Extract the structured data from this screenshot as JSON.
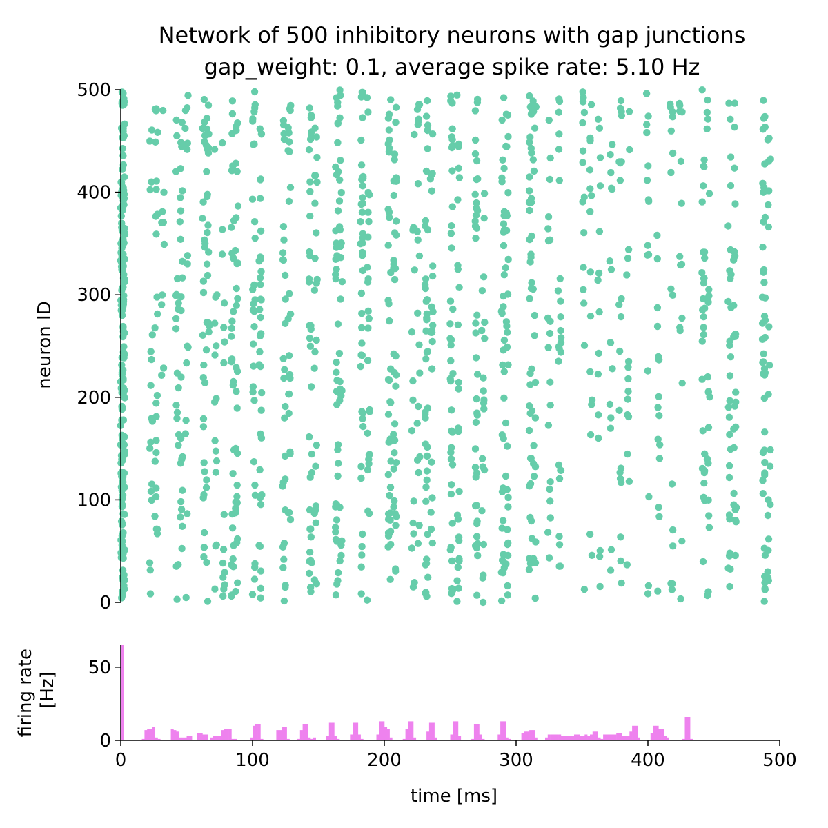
{
  "chart_data": [
    {
      "type": "scatter",
      "title": "Network of 500 inhibitory neurons with gap junctions",
      "subtitle": "gap_weight: 0.1, average spike rate: 5.10 Hz",
      "xlabel": "",
      "ylabel": "neuron ID",
      "xlim": [
        0,
        500
      ],
      "ylim": [
        0,
        500
      ],
      "yticks": [
        0,
        100,
        200,
        300,
        400,
        500
      ],
      "color": "#66cdaa",
      "grid": false,
      "spike_columns": [
        [
          1,
          0.2
        ],
        [
          2,
          0.18
        ],
        [
          23,
          0.035
        ],
        [
          27,
          0.05
        ],
        [
          32,
          0.02
        ],
        [
          43,
          0.04
        ],
        [
          46,
          0.05
        ],
        [
          50,
          0.03
        ],
        [
          63,
          0.05
        ],
        [
          66,
          0.05
        ],
        [
          72,
          0.03
        ],
        [
          78,
          0.03
        ],
        [
          85,
          0.06
        ],
        [
          88,
          0.06
        ],
        [
          101,
          0.06
        ],
        [
          106,
          0.07
        ],
        [
          124,
          0.06
        ],
        [
          128,
          0.05
        ],
        [
          144,
          0.07
        ],
        [
          148,
          0.05
        ],
        [
          164,
          0.08
        ],
        [
          167,
          0.05
        ],
        [
          183,
          0.08
        ],
        [
          188,
          0.05
        ],
        [
          204,
          0.08
        ],
        [
          208,
          0.07
        ],
        [
          222,
          0.03
        ],
        [
          226,
          0.04
        ],
        [
          232,
          0.08
        ],
        [
          236,
          0.04
        ],
        [
          251,
          0.08
        ],
        [
          256,
          0.05
        ],
        [
          270,
          0.08
        ],
        [
          275,
          0.04
        ],
        [
          290,
          0.07
        ],
        [
          293,
          0.06
        ],
        [
          311,
          0.08
        ],
        [
          314,
          0.04
        ],
        [
          325,
          0.04
        ],
        [
          333,
          0.05
        ],
        [
          351,
          0.03
        ],
        [
          357,
          0.03
        ],
        [
          363,
          0.03
        ],
        [
          372,
          0.03
        ],
        [
          379,
          0.04
        ],
        [
          385,
          0.03
        ],
        [
          400,
          0.03
        ],
        [
          408,
          0.03
        ],
        [
          418,
          0.03
        ],
        [
          425,
          0.03
        ],
        [
          442,
          0.06
        ],
        [
          446,
          0.04
        ],
        [
          462,
          0.06
        ],
        [
          466,
          0.05
        ],
        [
          488,
          0.09
        ],
        [
          492,
          0.04
        ]
      ]
    },
    {
      "type": "bar",
      "xlabel": "time [ms]",
      "ylabel": "firing rate\n[Hz]",
      "xlim": [
        0,
        500
      ],
      "ylim": [
        0,
        65
      ],
      "xticks": [
        0,
        100,
        200,
        300,
        400,
        500
      ],
      "yticks": [
        0,
        50
      ],
      "bin_width": 2,
      "color": "#ee82ee",
      "bins": [
        [
          0,
          65
        ],
        [
          16,
          1
        ],
        [
          18,
          7
        ],
        [
          20,
          8
        ],
        [
          22,
          8
        ],
        [
          24,
          9
        ],
        [
          26,
          2
        ],
        [
          28,
          1
        ],
        [
          38,
          8
        ],
        [
          40,
          7
        ],
        [
          42,
          6
        ],
        [
          44,
          2
        ],
        [
          46,
          2
        ],
        [
          48,
          2
        ],
        [
          50,
          3
        ],
        [
          52,
          3
        ],
        [
          58,
          5
        ],
        [
          60,
          5
        ],
        [
          62,
          4
        ],
        [
          64,
          4
        ],
        [
          68,
          2
        ],
        [
          70,
          3
        ],
        [
          72,
          3
        ],
        [
          74,
          3
        ],
        [
          76,
          7
        ],
        [
          78,
          8
        ],
        [
          80,
          8
        ],
        [
          82,
          8
        ],
        [
          84,
          1
        ],
        [
          86,
          1
        ],
        [
          98,
          2
        ],
        [
          100,
          10
        ],
        [
          102,
          11
        ],
        [
          104,
          11
        ],
        [
          106,
          1
        ],
        [
          118,
          7
        ],
        [
          120,
          7
        ],
        [
          122,
          9
        ],
        [
          124,
          9
        ],
        [
          126,
          1
        ],
        [
          134,
          1
        ],
        [
          136,
          7
        ],
        [
          138,
          11
        ],
        [
          140,
          11
        ],
        [
          142,
          2
        ],
        [
          144,
          1
        ],
        [
          146,
          2
        ],
        [
          156,
          3
        ],
        [
          158,
          12
        ],
        [
          160,
          12
        ],
        [
          162,
          3
        ],
        [
          164,
          1
        ],
        [
          174,
          4
        ],
        [
          176,
          12
        ],
        [
          178,
          12
        ],
        [
          180,
          4
        ],
        [
          182,
          1
        ],
        [
          194,
          4
        ],
        [
          196,
          13
        ],
        [
          198,
          13
        ],
        [
          200,
          9
        ],
        [
          202,
          8
        ],
        [
          204,
          2
        ],
        [
          214,
          1
        ],
        [
          216,
          8
        ],
        [
          218,
          13
        ],
        [
          220,
          13
        ],
        [
          222,
          2
        ],
        [
          232,
          6
        ],
        [
          234,
          12
        ],
        [
          236,
          12
        ],
        [
          238,
          2
        ],
        [
          250,
          4
        ],
        [
          252,
          13
        ],
        [
          254,
          13
        ],
        [
          256,
          3
        ],
        [
          266,
          1
        ],
        [
          268,
          11
        ],
        [
          270,
          11
        ],
        [
          272,
          4
        ],
        [
          274,
          1
        ],
        [
          286,
          4
        ],
        [
          288,
          13
        ],
        [
          290,
          13
        ],
        [
          292,
          2
        ],
        [
          294,
          1
        ],
        [
          304,
          5
        ],
        [
          306,
          6
        ],
        [
          308,
          6
        ],
        [
          310,
          7
        ],
        [
          312,
          7
        ],
        [
          314,
          2
        ],
        [
          322,
          2
        ],
        [
          324,
          4
        ],
        [
          326,
          4
        ],
        [
          328,
          4
        ],
        [
          330,
          4
        ],
        [
          332,
          4
        ],
        [
          334,
          3
        ],
        [
          336,
          3
        ],
        [
          338,
          3
        ],
        [
          340,
          3
        ],
        [
          342,
          3
        ],
        [
          344,
          4
        ],
        [
          346,
          4
        ],
        [
          348,
          3
        ],
        [
          350,
          3
        ],
        [
          352,
          4
        ],
        [
          354,
          3
        ],
        [
          356,
          4
        ],
        [
          358,
          6
        ],
        [
          360,
          6
        ],
        [
          362,
          2
        ],
        [
          364,
          1
        ],
        [
          366,
          4
        ],
        [
          368,
          4
        ],
        [
          370,
          4
        ],
        [
          372,
          4
        ],
        [
          374,
          4
        ],
        [
          376,
          5
        ],
        [
          378,
          5
        ],
        [
          380,
          3
        ],
        [
          382,
          3
        ],
        [
          384,
          3
        ],
        [
          386,
          6
        ],
        [
          388,
          10
        ],
        [
          390,
          10
        ],
        [
          392,
          2
        ],
        [
          402,
          5
        ],
        [
          404,
          10
        ],
        [
          406,
          10
        ],
        [
          408,
          8
        ],
        [
          410,
          8
        ],
        [
          412,
          3
        ],
        [
          414,
          2
        ],
        [
          426,
          1
        ],
        [
          428,
          16
        ],
        [
          430,
          16
        ],
        [
          432,
          1
        ]
      ]
    }
  ]
}
